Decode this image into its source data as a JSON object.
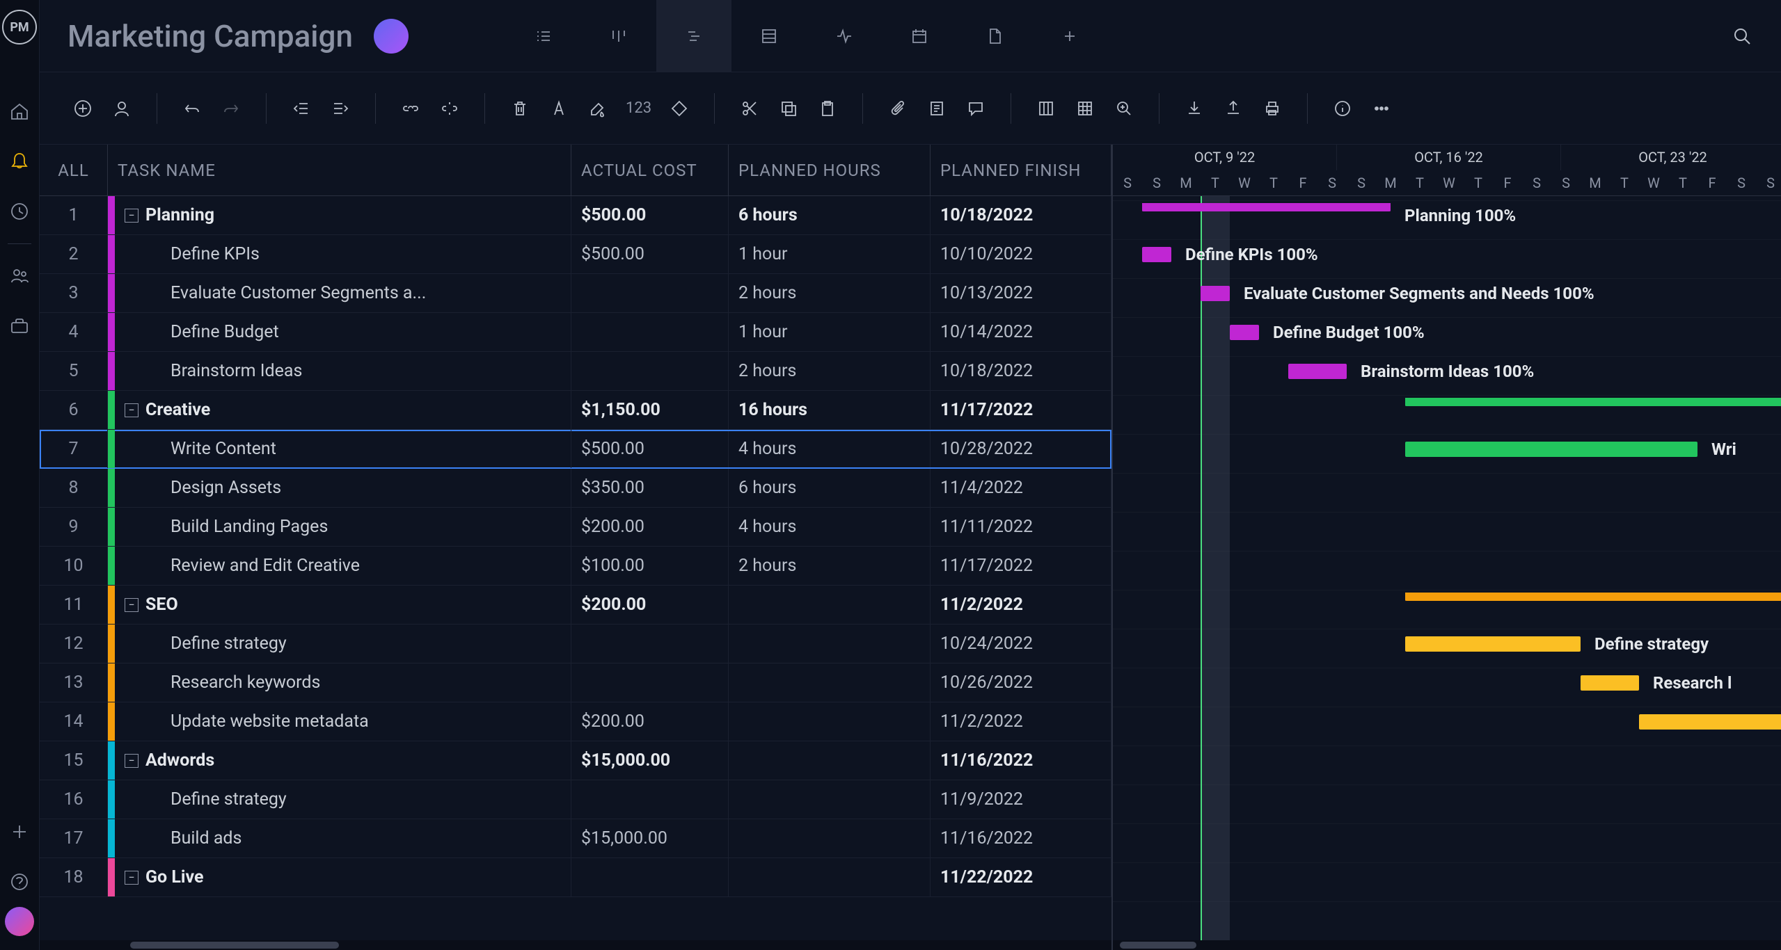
{
  "project_title": "Marketing Campaign",
  "toolbar_number": "123",
  "columns": {
    "all": "ALL",
    "task_name": "TASK NAME",
    "actual_cost": "ACTUAL COST",
    "planned_hours": "PLANNED HOURS",
    "planned_finish": "PLANNED FINISH"
  },
  "colors": {
    "magenta": "#c026d3",
    "green": "#22c55e",
    "orange": "#f59e0b",
    "lightorange": "#fbbf24",
    "cyan": "#06b6d4",
    "pink": "#ec4899"
  },
  "tasks": [
    {
      "num": "1",
      "name": "Planning",
      "cost": "$500.00",
      "hours": "6 hours",
      "finish": "10/18/2022",
      "group": true,
      "color": "magenta"
    },
    {
      "num": "2",
      "name": "Define KPIs",
      "cost": "$500.00",
      "hours": "1 hour",
      "finish": "10/10/2022",
      "group": false,
      "color": "magenta"
    },
    {
      "num": "3",
      "name": "Evaluate Customer Segments a...",
      "cost": "",
      "hours": "2 hours",
      "finish": "10/13/2022",
      "group": false,
      "color": "magenta"
    },
    {
      "num": "4",
      "name": "Define Budget",
      "cost": "",
      "hours": "1 hour",
      "finish": "10/14/2022",
      "group": false,
      "color": "magenta"
    },
    {
      "num": "5",
      "name": "Brainstorm Ideas",
      "cost": "",
      "hours": "2 hours",
      "finish": "10/18/2022",
      "group": false,
      "color": "magenta"
    },
    {
      "num": "6",
      "name": "Creative",
      "cost": "$1,150.00",
      "hours": "16 hours",
      "finish": "11/17/2022",
      "group": true,
      "color": "green"
    },
    {
      "num": "7",
      "name": "Write Content",
      "cost": "$500.00",
      "hours": "4 hours",
      "finish": "10/28/2022",
      "group": false,
      "color": "green",
      "selected": true
    },
    {
      "num": "8",
      "name": "Design Assets",
      "cost": "$350.00",
      "hours": "6 hours",
      "finish": "11/4/2022",
      "group": false,
      "color": "green"
    },
    {
      "num": "9",
      "name": "Build Landing Pages",
      "cost": "$200.00",
      "hours": "4 hours",
      "finish": "11/11/2022",
      "group": false,
      "color": "green"
    },
    {
      "num": "10",
      "name": "Review and Edit Creative",
      "cost": "$100.00",
      "hours": "2 hours",
      "finish": "11/17/2022",
      "group": false,
      "color": "green"
    },
    {
      "num": "11",
      "name": "SEO",
      "cost": "$200.00",
      "hours": "",
      "finish": "11/2/2022",
      "group": true,
      "color": "orange"
    },
    {
      "num": "12",
      "name": "Define strategy",
      "cost": "",
      "hours": "",
      "finish": "10/24/2022",
      "group": false,
      "color": "orange"
    },
    {
      "num": "13",
      "name": "Research keywords",
      "cost": "",
      "hours": "",
      "finish": "10/26/2022",
      "group": false,
      "color": "orange"
    },
    {
      "num": "14",
      "name": "Update website metadata",
      "cost": "$200.00",
      "hours": "",
      "finish": "11/2/2022",
      "group": false,
      "color": "orange"
    },
    {
      "num": "15",
      "name": "Adwords",
      "cost": "$15,000.00",
      "hours": "",
      "finish": "11/16/2022",
      "group": true,
      "color": "cyan"
    },
    {
      "num": "16",
      "name": "Define strategy",
      "cost": "",
      "hours": "",
      "finish": "11/9/2022",
      "group": false,
      "color": "cyan"
    },
    {
      "num": "17",
      "name": "Build ads",
      "cost": "$15,000.00",
      "hours": "",
      "finish": "11/16/2022",
      "group": false,
      "color": "cyan"
    },
    {
      "num": "18",
      "name": "Go Live",
      "cost": "",
      "hours": "",
      "finish": "11/22/2022",
      "group": true,
      "color": "pink"
    }
  ],
  "timeline": {
    "weeks": [
      "OCT, 9 '22",
      "OCT, 16 '22",
      "OCT, 23 '22"
    ],
    "days": [
      "S",
      "S",
      "M",
      "T",
      "W",
      "T",
      "F",
      "S",
      "S",
      "M",
      "T",
      "W",
      "T",
      "F",
      "S",
      "S",
      "M",
      "T",
      "W",
      "T",
      "F",
      "S",
      "S"
    ],
    "day_width": 42,
    "today_index": 3
  },
  "gantt_bars": [
    {
      "row": 0,
      "start": 1,
      "span": 8.5,
      "color": "magenta",
      "summary": true,
      "label": "Planning  100%",
      "label_side": "right"
    },
    {
      "row": 1,
      "start": 1,
      "span": 1,
      "color": "magenta",
      "label": "Define KPIs  100%",
      "label_side": "right"
    },
    {
      "row": 2,
      "start": 3,
      "span": 1,
      "color": "magenta",
      "label": "Evaluate Customer Segments and Needs  100%",
      "label_side": "right"
    },
    {
      "row": 3,
      "start": 4,
      "span": 1,
      "color": "magenta",
      "label": "Define Budget  100%",
      "label_side": "right"
    },
    {
      "row": 4,
      "start": 6,
      "span": 2,
      "color": "magenta",
      "label": "Brainstorm Ideas  100%",
      "label_side": "right"
    },
    {
      "row": 5,
      "start": 10,
      "span": 30,
      "color": "green",
      "summary": true
    },
    {
      "row": 6,
      "start": 10,
      "span": 10,
      "color": "green",
      "label": "Wri",
      "label_side": "right-clipped"
    },
    {
      "row": 10,
      "start": 10,
      "span": 30,
      "color": "orange",
      "summary": true
    },
    {
      "row": 11,
      "start": 10,
      "span": 6,
      "color": "lightorange",
      "label": "Define strategy",
      "label_side": "right"
    },
    {
      "row": 12,
      "start": 16,
      "span": 2,
      "color": "lightorange",
      "label": "Research l",
      "label_side": "right-clipped"
    },
    {
      "row": 13,
      "start": 18,
      "span": 6,
      "color": "lightorange"
    }
  ]
}
